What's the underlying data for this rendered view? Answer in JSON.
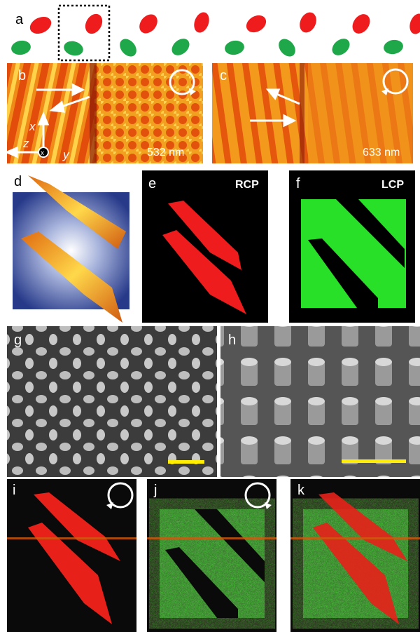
{
  "panel_labels": [
    "a",
    "b",
    "c",
    "d",
    "e",
    "f",
    "g",
    "h",
    "i",
    "j",
    "k"
  ],
  "wavelengths": [
    "532 nm",
    "633 nm"
  ],
  "polarization_labels": [
    "RCP",
    "LCP"
  ],
  "axis_labels": [
    "x",
    "z",
    "y"
  ]
}
